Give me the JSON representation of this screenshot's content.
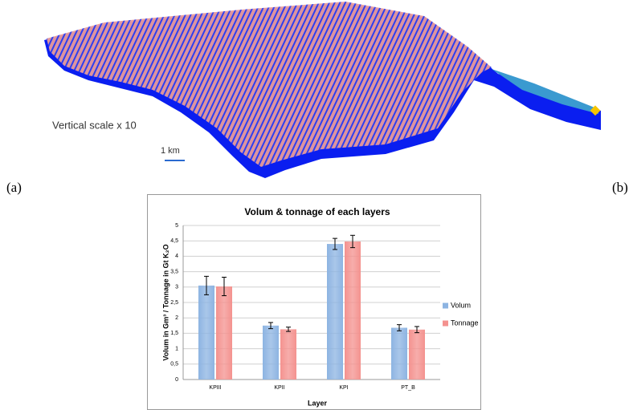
{
  "figure": {
    "panel_a": "(a)",
    "panel_b": "(b)",
    "scale_note": "Vertical scale x 10",
    "scale_bar": "1 km"
  },
  "chart_data": {
    "type": "bar",
    "title": "Volum & tonnage of each layers",
    "x_label": "Layer",
    "y_label": "Volum in Gm³ / Tonnage in Gt K₂O",
    "categories": [
      "KPIII",
      "KPII",
      "KPI",
      "PT_B"
    ],
    "series": [
      {
        "name": "Volum",
        "color": "#8db4e2",
        "values": [
          3.05,
          1.75,
          4.4,
          1.68
        ],
        "errors": [
          0.3,
          0.1,
          0.18,
          0.1
        ]
      },
      {
        "name": "Tonnage",
        "color": "#f4928f",
        "values": [
          3.02,
          1.63,
          4.48,
          1.62
        ],
        "errors": [
          0.3,
          0.07,
          0.2,
          0.1
        ]
      }
    ],
    "ylim": [
      0,
      5
    ],
    "yticks": [
      0,
      {
        "value": 0.5,
        "label": "0,5"
      },
      1,
      {
        "value": 1.5,
        "label": "1,5"
      },
      2,
      {
        "value": 2.5,
        "label": "2,5"
      },
      3,
      {
        "value": 3.5,
        "label": "3,5"
      },
      4,
      {
        "value": 4.5,
        "label": "4,5"
      },
      5
    ],
    "grid": true,
    "legend": "right",
    "error_bars": true
  }
}
